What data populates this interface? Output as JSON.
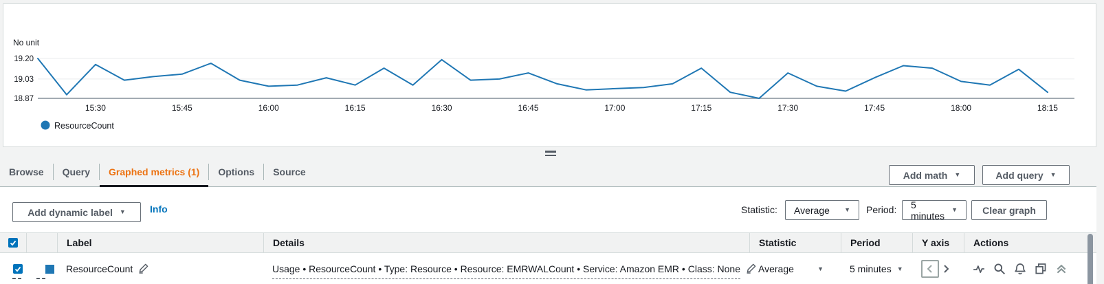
{
  "chart_data": {
    "type": "line",
    "title": "",
    "unit_label": "No unit",
    "x": [
      "15:20",
      "15:25",
      "15:30",
      "15:35",
      "15:40",
      "15:45",
      "15:50",
      "15:55",
      "16:00",
      "16:05",
      "16:10",
      "16:15",
      "16:20",
      "16:25",
      "16:30",
      "16:35",
      "16:40",
      "16:45",
      "16:50",
      "16:55",
      "17:00",
      "17:05",
      "17:10",
      "17:15",
      "17:20",
      "17:25",
      "17:30",
      "17:35",
      "17:40",
      "17:45",
      "17:50",
      "17:55",
      "18:00",
      "18:05",
      "18:10",
      "18:15"
    ],
    "series": [
      {
        "name": "ResourceCount",
        "color": "#1f77b4",
        "values": [
          19.2,
          18.9,
          19.15,
          19.02,
          19.05,
          19.07,
          19.16,
          19.02,
          18.97,
          18.98,
          19.04,
          18.98,
          19.12,
          18.98,
          19.19,
          19.02,
          19.03,
          19.08,
          18.99,
          18.94,
          18.95,
          18.96,
          18.99,
          19.12,
          18.92,
          18.87,
          19.08,
          18.97,
          18.93,
          19.04,
          19.14,
          19.12,
          19.01,
          18.98,
          19.11,
          18.92
        ]
      }
    ],
    "yticks": [
      "19.20",
      "19.03",
      "18.87"
    ],
    "ylim": [
      18.87,
      19.25
    ],
    "xtick_labels": [
      "15:30",
      "15:45",
      "16:00",
      "16:15",
      "16:30",
      "16:45",
      "17:00",
      "17:15",
      "17:30",
      "17:45",
      "18:00",
      "18:15"
    ],
    "grid": "horizontal",
    "legend_position": "bottom-left"
  },
  "tabs": {
    "items": [
      {
        "label": "Browse"
      },
      {
        "label": "Query"
      },
      {
        "label": "Graphed metrics (1)"
      },
      {
        "label": "Options"
      },
      {
        "label": "Source"
      }
    ],
    "add_math_label": "Add math",
    "add_query_label": "Add query"
  },
  "toolbar": {
    "add_dynamic_label": "Add dynamic label",
    "info_label": "Info",
    "statistic_label": "Statistic:",
    "statistic_value": "Average",
    "period_label": "Period:",
    "period_value": "5 minutes",
    "clear_graph_label": "Clear graph"
  },
  "table": {
    "columns": {
      "label": "Label",
      "details": "Details",
      "statistic": "Statistic",
      "period": "Period",
      "y_axis": "Y axis",
      "actions": "Actions"
    },
    "row": {
      "selected": true,
      "color": "#1f77b4",
      "label": "ResourceCount",
      "details": "Usage • ResourceCount • Type: Resource • Resource: EMRWALCount • Service: Amazon EMR • Class: None",
      "statistic": "Average",
      "period": "5 minutes"
    }
  },
  "icons": {
    "caret_down": "▼"
  },
  "colors": {
    "line": "#1f77b4",
    "active_tab": "#ec7211",
    "link": "#0073bb",
    "checkbox": "#0073bb",
    "text_primary": "#16191f",
    "text_secondary": "#545b64"
  }
}
